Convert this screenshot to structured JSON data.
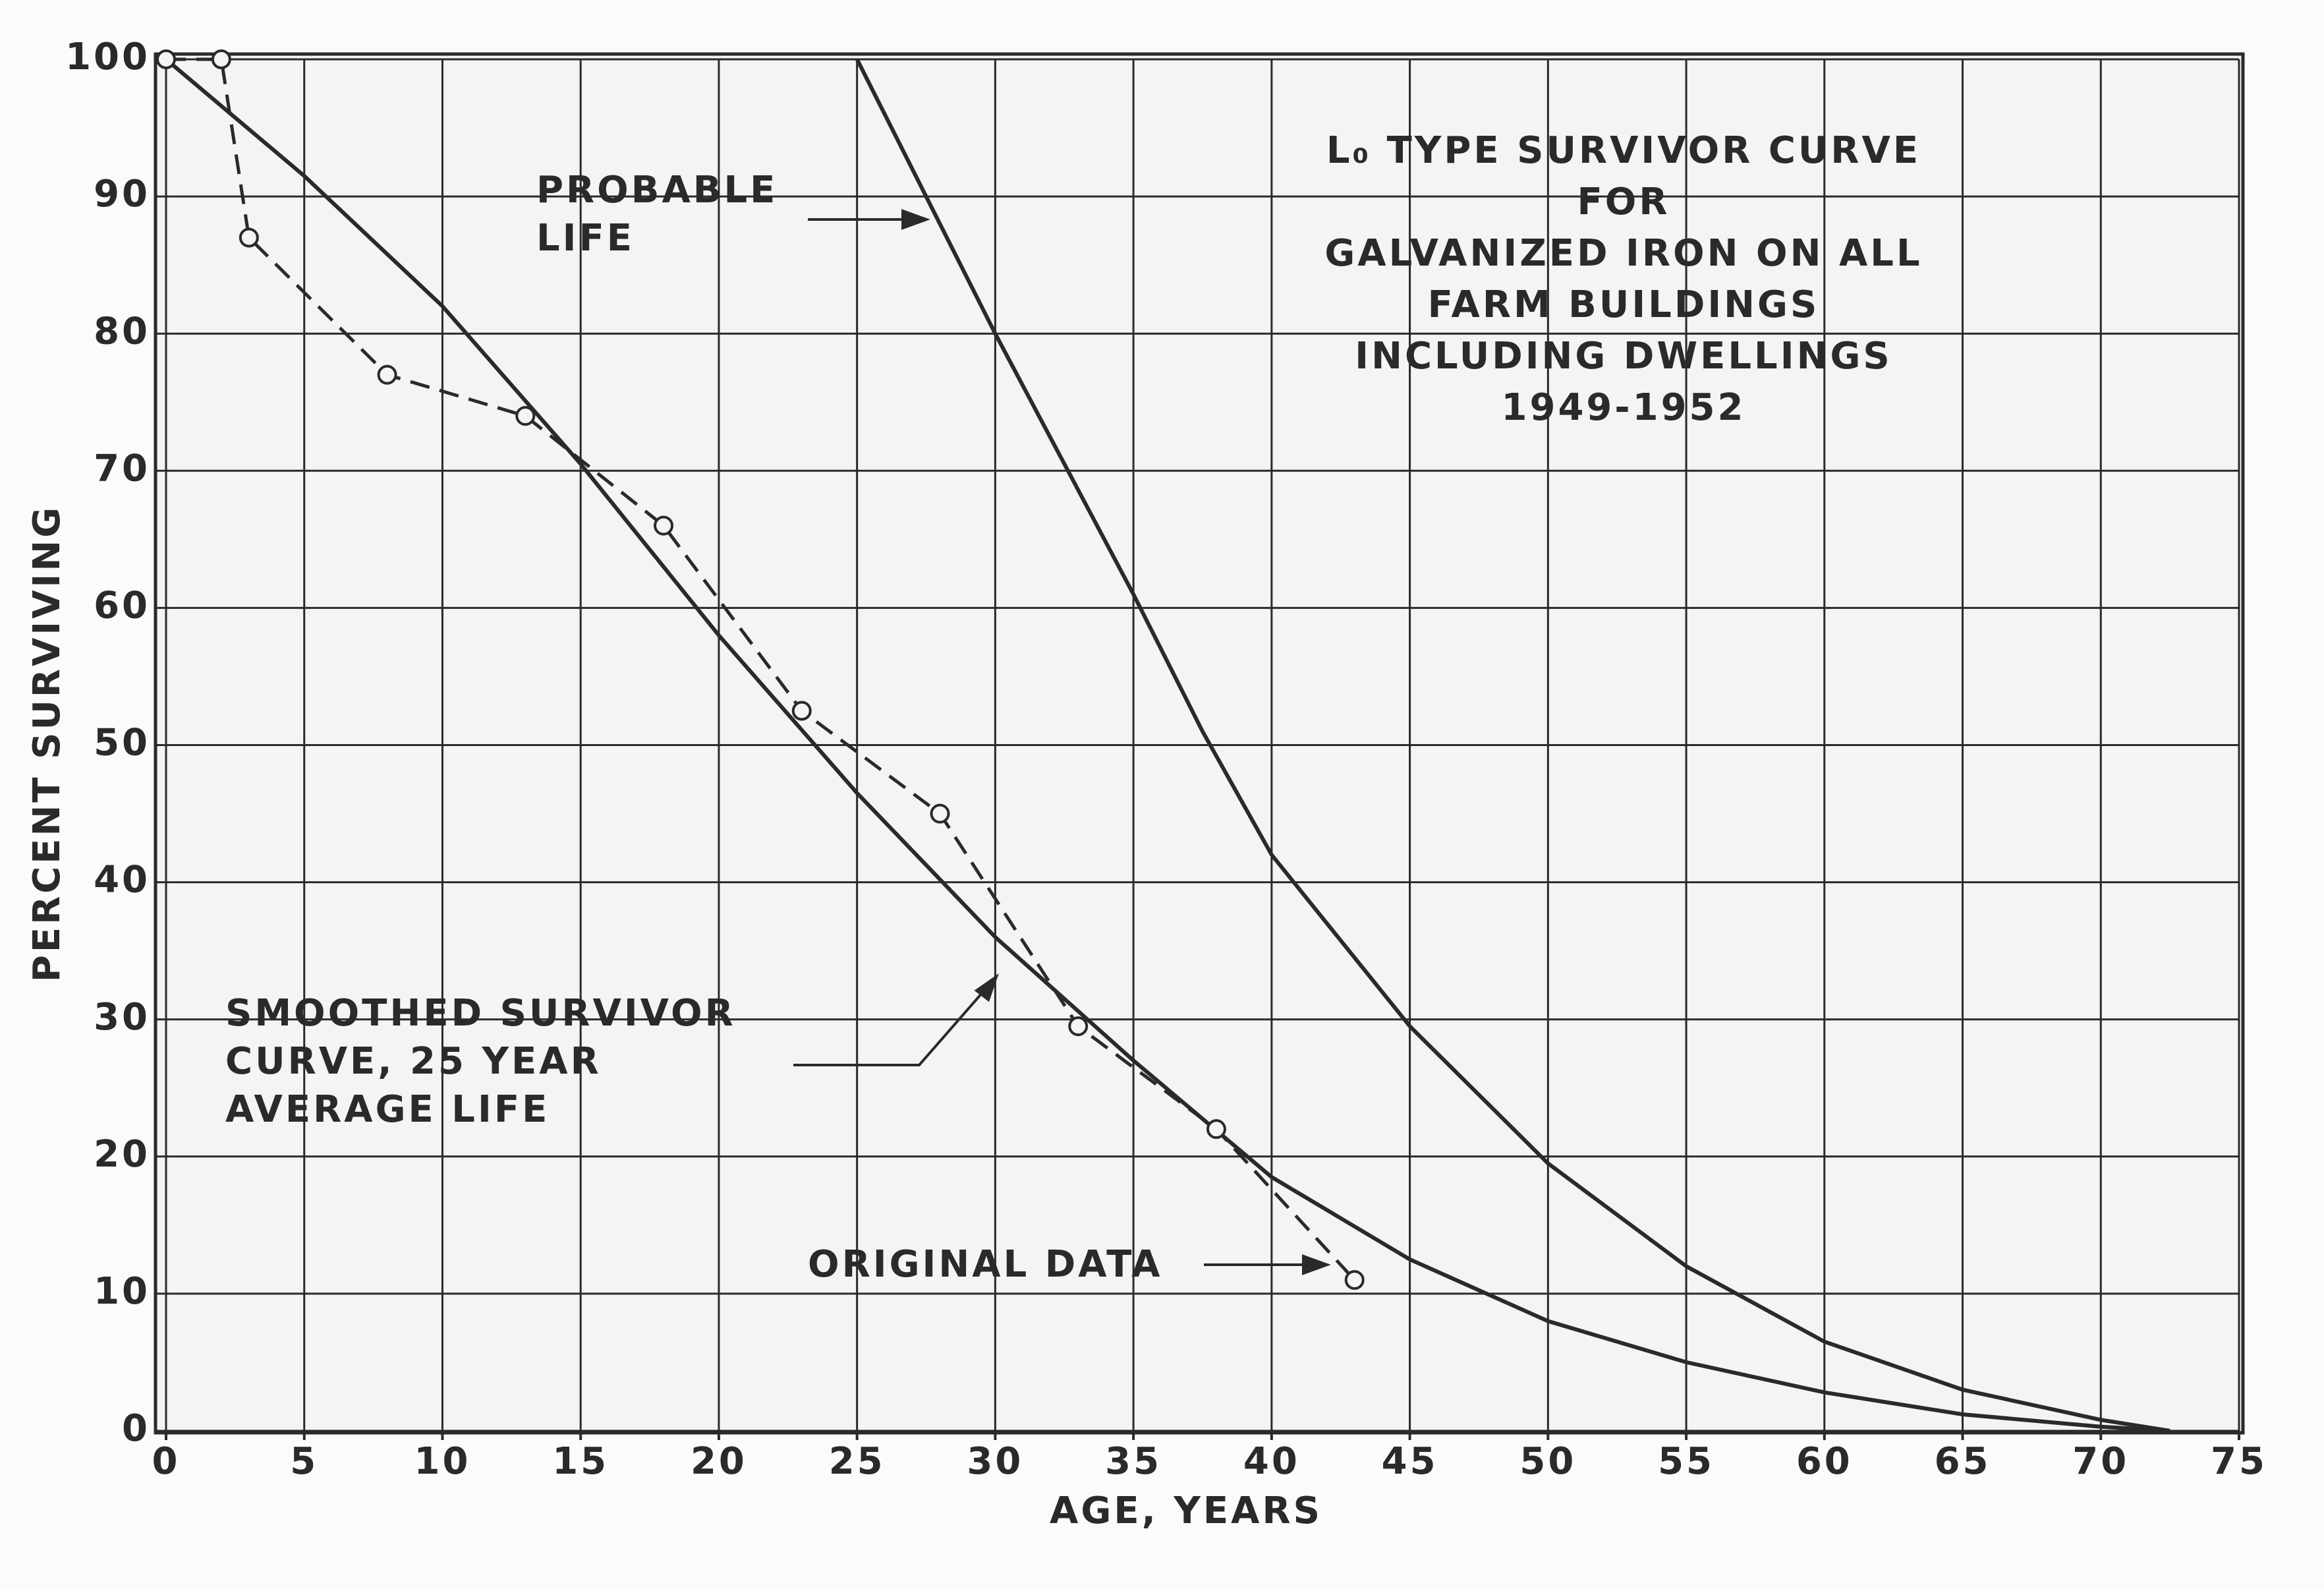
{
  "chart_data": {
    "type": "line",
    "title_lines": [
      "L₀ TYPE SURVIVOR CURVE",
      "FOR",
      "GALVANIZED IRON ON ALL",
      "FARM BUILDINGS",
      "INCLUDING DWELLINGS",
      "1949-1952"
    ],
    "xlabel": "AGE, YEARS",
    "ylabel": "PERCENT SURVIVING",
    "xlim": [
      0,
      75
    ],
    "xticks": [
      0,
      5,
      10,
      15,
      20,
      25,
      30,
      35,
      40,
      45,
      50,
      55,
      60,
      65,
      70,
      75
    ],
    "ylim": [
      0,
      100
    ],
    "yticks": [
      0,
      10,
      20,
      30,
      40,
      50,
      60,
      70,
      80,
      90,
      100
    ],
    "grid": true,
    "series": [
      {
        "label_lines": [
          "SMOOTHED SURVIVOR",
          "CURVE, 25 YEAR",
          "AVERAGE LIFE"
        ],
        "color": "#2a2a2a",
        "dashed": false,
        "markers": false,
        "x": [
          0,
          5,
          10,
          15,
          20,
          25,
          30,
          35,
          40,
          45,
          50,
          55,
          60,
          65,
          70,
          72.5
        ],
        "values": [
          100,
          91.5,
          82,
          70.5,
          58,
          46.5,
          36,
          27,
          18.5,
          12.5,
          8,
          5,
          2.8,
          1.2,
          0.3,
          0
        ]
      },
      {
        "label_lines": [
          "PROBABLE",
          "LIFE"
        ],
        "color": "#2a2a2a",
        "dashed": false,
        "markers": false,
        "x": [
          25,
          27.5,
          30,
          32.5,
          35,
          37.5,
          40,
          45,
          50,
          55,
          60,
          65,
          70,
          72.5
        ],
        "values": [
          100,
          90,
          80,
          70.5,
          61,
          51,
          42,
          29.5,
          19.5,
          12,
          6.5,
          3,
          0.8,
          0
        ]
      },
      {
        "label_lines": [
          "ORIGINAL DATA"
        ],
        "color": "#2a2a2a",
        "dashed": true,
        "markers": true,
        "x": [
          0,
          2,
          3,
          8,
          13,
          18,
          23,
          28,
          33,
          38,
          43
        ],
        "values": [
          100,
          100,
          87,
          77,
          74,
          66,
          52.5,
          45,
          29.5,
          22,
          11
        ]
      }
    ]
  }
}
